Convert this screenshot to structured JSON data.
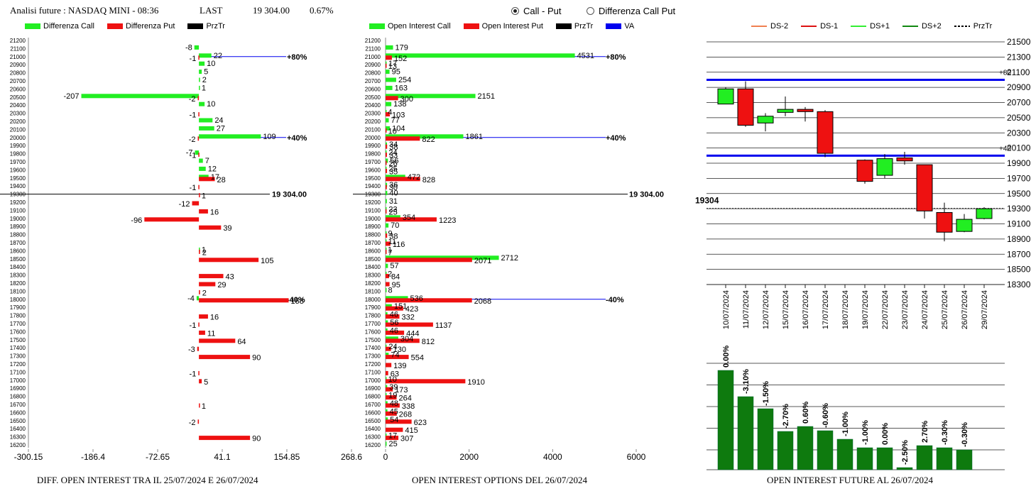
{
  "header": {
    "title": "Analisi future : NASDAQ MINI - 08:36",
    "last_label": "LAST",
    "last_value": "19 304.00",
    "change": "0.67%"
  },
  "radios": [
    {
      "label": "Call - Put",
      "selected": true
    },
    {
      "label": "Differenza Call Put",
      "selected": false
    }
  ],
  "colors": {
    "green": "#22ee22",
    "red": "#ee1111",
    "black": "#000000",
    "blue": "#0000ee",
    "dark_green": "#0e7a0e"
  },
  "legend1": [
    {
      "label": "Differenza Call",
      "color": "#22ee22"
    },
    {
      "label": "Differenza Put",
      "color": "#ee1111"
    },
    {
      "label": "PrzTr",
      "color": "#000000"
    }
  ],
  "legend2": [
    {
      "label": "Open Interest Call",
      "color": "#22ee22"
    },
    {
      "label": "Open Interest Put",
      "color": "#ee1111"
    },
    {
      "label": "PrzTr",
      "color": "#000000"
    },
    {
      "label": "VA",
      "color": "#0000ee"
    }
  ],
  "legend3": [
    {
      "label": "DS-2",
      "color": "#f08050",
      "dash": false
    },
    {
      "label": "DS-1",
      "color": "#dd1111",
      "dash": false
    },
    {
      "label": "DS+1",
      "color": "#33ee33",
      "dash": false
    },
    {
      "label": "DS+2",
      "color": "#118811",
      "dash": false
    },
    {
      "label": "PrzTr",
      "color": "#000000",
      "dash": true
    }
  ],
  "captions": {
    "left": "DIFF. OPEN INTEREST TRA IL 25/07/2024 E 26/07/2024",
    "middle": "OPEN INTEREST OPTIONS DEL 26/07/2024",
    "right": "OPEN INTEREST FUTURE AL 26/07/2024"
  },
  "chart_data": [
    {
      "type": "bar",
      "orientation": "horizontal",
      "categories": [
        "21200",
        "21100",
        "21000",
        "20900",
        "20800",
        "20700",
        "20600",
        "20500",
        "20400",
        "20300",
        "20200",
        "20100",
        "20000",
        "19900",
        "19800",
        "19700",
        "19600",
        "19500",
        "19400",
        "19300",
        "19200",
        "19100",
        "19000",
        "18900",
        "18800",
        "18700",
        "18600",
        "18500",
        "18400",
        "18300",
        "18200",
        "18100",
        "18000",
        "17900",
        "17800",
        "17700",
        "17600",
        "17500",
        "17400",
        "17300",
        "17200",
        "17100",
        "17000",
        "16900",
        "16800",
        "16700",
        "16600",
        "16500",
        "16400",
        "16300",
        "16200"
      ],
      "series": [
        {
          "name": "Differenza Call",
          "values": [
            null,
            -8,
            22,
            10,
            5,
            2,
            1,
            -207,
            10,
            null,
            24,
            27,
            109,
            null,
            -7,
            7,
            12,
            17,
            null,
            null,
            null,
            null,
            null,
            null,
            null,
            null,
            1,
            null,
            null,
            null,
            null,
            null,
            -4,
            null,
            null,
            null,
            null,
            null,
            null,
            null,
            null,
            null,
            null,
            null,
            null,
            null,
            null,
            null,
            null,
            null,
            null
          ]
        },
        {
          "name": "Differenza Put",
          "values": [
            null,
            null,
            -1,
            null,
            null,
            null,
            null,
            -2,
            null,
            -1,
            null,
            null,
            -2,
            null,
            -1,
            null,
            null,
            28,
            -1,
            1,
            -12,
            16,
            -96,
            39,
            null,
            null,
            2,
            105,
            null,
            43,
            29,
            2,
            158,
            null,
            16,
            -1,
            11,
            64,
            -3,
            90,
            null,
            -1,
            5,
            null,
            null,
            1,
            null,
            -2,
            null,
            90,
            null
          ]
        }
      ],
      "xlim": [
        -300.15,
        268.6
      ],
      "xticks": [
        "-300.15",
        "-186.4",
        "-72.65",
        "41.1",
        "154.85",
        "268.6"
      ],
      "reference_lines": [
        {
          "category": "21000",
          "label": "+80%"
        },
        {
          "category": "20000",
          "label": "+40%"
        },
        {
          "category": "18000",
          "label": "-40%"
        }
      ],
      "przt_category": "19300",
      "przt_label": "19 304.00",
      "grid": false
    },
    {
      "type": "bar",
      "orientation": "horizontal",
      "categories": [
        "21200",
        "21100",
        "21000",
        "20900",
        "20800",
        "20700",
        "20600",
        "20500",
        "20400",
        "20300",
        "20200",
        "20100",
        "20000",
        "19900",
        "19800",
        "19700",
        "19600",
        "19500",
        "19400",
        "19300",
        "19200",
        "19100",
        "19000",
        "18900",
        "18800",
        "18700",
        "18600",
        "18500",
        "18400",
        "18300",
        "18200",
        "18100",
        "18000",
        "17900",
        "17800",
        "17700",
        "17600",
        "17500",
        "17400",
        "17300",
        "17200",
        "17100",
        "17000",
        "16900",
        "16800",
        "16700",
        "16600",
        "16500",
        "16400",
        "16300",
        "16200"
      ],
      "series": [
        {
          "name": "Open Interest Call",
          "values": [
            null,
            179,
            4531,
            17,
            95,
            254,
            163,
            2151,
            138,
            4,
            77,
            104,
            1861,
            34,
            24,
            56,
            25,
            472,
            36,
            40,
            31,
            23,
            354,
            70,
            9,
            11,
            1,
            2712,
            57,
            2,
            null,
            8,
            536,
            151,
            46,
            56,
            46,
            304,
            24,
            74,
            null,
            null,
            10,
            39,
            19,
            48,
            45,
            54,
            null,
            17,
            25
          ]
        },
        {
          "name": "Open Interest Put",
          "values": [
            null,
            null,
            152,
            13,
            null,
            null,
            null,
            300,
            null,
            103,
            null,
            10,
            822,
            38,
            33,
            26,
            35,
            828,
            30,
            null,
            null,
            25,
            1223,
            null,
            38,
            116,
            7,
            2071,
            null,
            84,
            95,
            null,
            2068,
            423,
            332,
            1137,
            444,
            812,
            130,
            554,
            139,
            63,
            1910,
            173,
            264,
            338,
            268,
            623,
            415,
            307,
            null
          ]
        }
      ],
      "xlim": [
        0,
        6000
      ],
      "xticks": [
        "0",
        "2000",
        "4000",
        "6000"
      ],
      "reference_lines": [
        {
          "category": "21000",
          "label": "+80%"
        },
        {
          "category": "20000",
          "label": "+40%"
        },
        {
          "category": "18000",
          "label": "-40%"
        }
      ],
      "przt_category": "19300",
      "przt_label": "19 304.00",
      "grid": false
    },
    {
      "type": "candlestick",
      "categories": [
        "10/07/2024",
        "11/07/2024",
        "12/07/2024",
        "15/07/2024",
        "16/07/2024",
        "17/07/2024",
        "18/07/2024",
        "19/07/2024",
        "22/07/2024",
        "23/07/2024",
        "24/07/2024",
        "25/07/2024",
        "26/07/2024",
        "29/07/2024"
      ],
      "candles": [
        {
          "open": 20680,
          "close": 20880,
          "high": 20900,
          "low": 20680
        },
        {
          "open": 20880,
          "close": 20400,
          "high": 20980,
          "low": 20380
        },
        {
          "open": 20430,
          "close": 20520,
          "high": 20560,
          "low": 20320
        },
        {
          "open": 20570,
          "close": 20610,
          "high": 20780,
          "low": 20520
        },
        {
          "open": 20610,
          "close": 20580,
          "high": 20640,
          "low": 20450
        },
        {
          "open": 20580,
          "close": 20030,
          "high": 20600,
          "low": 19980
        },
        null,
        {
          "open": 19940,
          "close": 19660,
          "high": 19950,
          "low": 19630
        },
        {
          "open": 19740,
          "close": 19960,
          "high": 20020,
          "low": 19700
        },
        {
          "open": 19970,
          "close": 19930,
          "high": 20050,
          "low": 19880
        },
        {
          "open": 19880,
          "close": 19270,
          "high": 19880,
          "low": 19170
        },
        {
          "open": 19250,
          "close": 18990,
          "high": 19380,
          "low": 18870
        },
        {
          "open": 19000,
          "close": 19160,
          "high": 19230,
          "low": 18990
        },
        {
          "open": 19170,
          "close": 19300,
          "high": 19320,
          "low": 19160
        }
      ],
      "ylim": [
        18300,
        21500
      ],
      "yticks": [
        "21500",
        "21300",
        "21100",
        "20900",
        "20700",
        "20500",
        "20300",
        "20100",
        "19900",
        "19700",
        "19500",
        "19300",
        "19100",
        "18900",
        "18700",
        "18500",
        "18300"
      ],
      "reference_lines": [
        {
          "value": 21000,
          "label": "+80"
        },
        {
          "value": 20000,
          "label": "+40"
        }
      ],
      "przt_value": 19304,
      "przt_label": "19304",
      "grid": true
    },
    {
      "type": "bar",
      "categories": [
        "10/07/2024",
        "11/07/2024",
        "12/07/2024",
        "15/07/2024",
        "16/07/2024",
        "17/07/2024",
        "18/07/2024",
        "19/07/2024",
        "22/07/2024",
        "23/07/2024",
        "24/07/2024",
        "25/07/2024",
        "26/07/2024"
      ],
      "values": [
        140,
        103,
        86,
        54,
        61,
        55,
        43,
        31,
        31,
        3,
        34,
        31,
        28
      ],
      "labels": [
        "0.00%",
        "-3.10%",
        "-1.50%",
        "-2.70%",
        "0.60%",
        "-0.60%",
        "-1.00%",
        "-1.00%",
        "0.00%",
        "-2.50%",
        "2.70%",
        "-0.30%",
        "-0.30%"
      ],
      "grid": true
    }
  ]
}
